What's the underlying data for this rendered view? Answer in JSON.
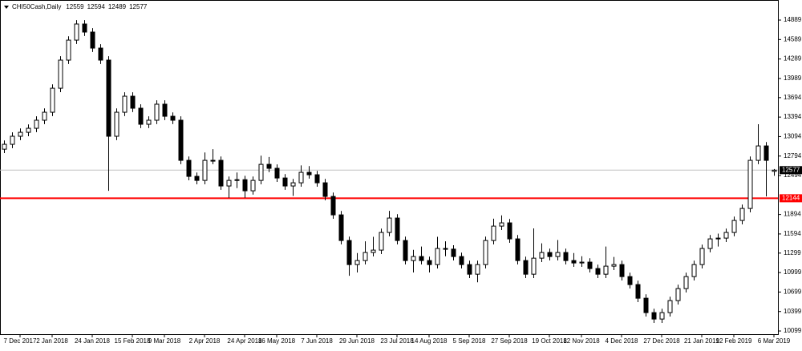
{
  "chart_data": {
    "type": "candlestick",
    "symbol": "CHI50Cash,Daily",
    "ylim": [
      10050,
      15198
    ],
    "yticks": [
      14889,
      14589,
      14289,
      13989,
      13694,
      13394,
      13094,
      12794,
      12494,
      11894,
      11594,
      11299,
      10999,
      10699,
      10399,
      10099
    ],
    "xlim": [
      -0.5,
      96.5
    ],
    "xticks": [
      {
        "value": 2,
        "label": "7 Dec 2017"
      },
      {
        "value": 6,
        "label": "2 Jan 2018"
      },
      {
        "value": 11,
        "label": "24 Jan 2018"
      },
      {
        "value": 16,
        "label": "15 Feb 2018"
      },
      {
        "value": 20,
        "label": "9 Mar 2018"
      },
      {
        "value": 25,
        "label": "2 Apr 2018"
      },
      {
        "value": 30,
        "label": "24 Apr 2018"
      },
      {
        "value": 34,
        "label": "16 May 2018"
      },
      {
        "value": 39,
        "label": "7 Jun 2018"
      },
      {
        "value": 44,
        "label": "29 Jun 2018"
      },
      {
        "value": 49,
        "label": "23 Jul 2018"
      },
      {
        "value": 53,
        "label": "14 Aug 2018"
      },
      {
        "value": 58,
        "label": "5 Sep 2018"
      },
      {
        "value": 63,
        "label": "27 Sep 2018"
      },
      {
        "value": 68,
        "label": "19 Oct 2018"
      },
      {
        "value": 72,
        "label": "12 Nov 2018"
      },
      {
        "value": 77,
        "label": "4 Dec 2018"
      },
      {
        "value": 82,
        "label": "27 Dec 2018"
      },
      {
        "value": 87,
        "label": "21 Jan 2019"
      },
      {
        "value": 91,
        "label": "12 Feb 2019"
      },
      {
        "value": 96,
        "label": "6 Mar 2019"
      }
    ],
    "color": "#000000",
    "bid": 12577,
    "bid_color": "#c0c0c0",
    "level": 12144,
    "level_color": "#ff0000",
    "ohlc": [
      [
        12900,
        13035,
        12840,
        12975
      ],
      [
        12975,
        13159,
        12915,
        13099
      ],
      [
        13099,
        13220,
        13039,
        13160
      ],
      [
        13160,
        13282,
        13100,
        13222
      ],
      [
        13222,
        13406,
        13162,
        13346
      ],
      [
        13346,
        13529,
        13286,
        13469
      ],
      [
        13469,
        13899,
        13409,
        13839
      ],
      [
        13839,
        14332,
        13779,
        14272
      ],
      [
        14272,
        14640,
        14212,
        14580
      ],
      [
        14580,
        14888,
        14520,
        14828
      ],
      [
        14828,
        14888,
        14644,
        14704
      ],
      [
        14704,
        14764,
        14397,
        14457
      ],
      [
        14457,
        14517,
        14212,
        14272
      ],
      [
        14272,
        14332,
        12259,
        13099
      ],
      [
        13099,
        13529,
        13039,
        13469
      ],
      [
        13469,
        13776,
        13409,
        13716
      ],
      [
        13716,
        13776,
        13471,
        13531
      ],
      [
        13531,
        13591,
        13224,
        13284
      ],
      [
        13284,
        13406,
        13224,
        13346
      ],
      [
        13346,
        13653,
        13286,
        13593
      ],
      [
        13593,
        13653,
        13347,
        13407
      ],
      [
        13407,
        13467,
        13286,
        13346
      ],
      [
        13346,
        13406,
        12668,
        12728
      ],
      [
        12728,
        12788,
        12421,
        12481
      ],
      [
        12481,
        12541,
        12359,
        12419
      ],
      [
        12419,
        12850,
        12359,
        12728
      ],
      [
        12728,
        12900,
        12668,
        12728
      ],
      [
        12728,
        12788,
        12273,
        12333
      ],
      [
        12333,
        12479,
        12150,
        12419
      ],
      [
        12419,
        12540,
        12300,
        12430
      ],
      [
        12430,
        12490,
        12150,
        12259
      ],
      [
        12259,
        12479,
        12199,
        12419
      ],
      [
        12419,
        12800,
        12359,
        12666
      ],
      [
        12666,
        12780,
        12545,
        12605
      ],
      [
        12605,
        12665,
        12396,
        12456
      ],
      [
        12456,
        12516,
        12273,
        12333
      ],
      [
        12333,
        12442,
        12180,
        12382
      ],
      [
        12382,
        12650,
        12322,
        12543
      ],
      [
        12543,
        12640,
        12446,
        12506
      ],
      [
        12506,
        12566,
        12322,
        12382
      ],
      [
        12382,
        12442,
        12112,
        12172
      ],
      [
        12172,
        12232,
        11828,
        11888
      ],
      [
        11888,
        11948,
        11433,
        11493
      ],
      [
        11493,
        11553,
        10950,
        11122
      ],
      [
        11122,
        11300,
        11000,
        11184
      ],
      [
        11184,
        11480,
        11124,
        11308
      ],
      [
        11308,
        11550,
        11248,
        11345
      ],
      [
        11345,
        11677,
        11285,
        11617
      ],
      [
        11617,
        11950,
        11557,
        11839
      ],
      [
        11839,
        11899,
        11433,
        11493
      ],
      [
        11493,
        11553,
        11124,
        11184
      ],
      [
        11184,
        11350,
        11000,
        11246
      ],
      [
        11246,
        11400,
        11124,
        11184
      ],
      [
        11184,
        11244,
        11000,
        11122
      ],
      [
        11122,
        11550,
        11062,
        11370
      ],
      [
        11370,
        11480,
        11250,
        11360
      ],
      [
        11360,
        11420,
        11186,
        11246
      ],
      [
        11246,
        11306,
        11062,
        11122
      ],
      [
        11122,
        11182,
        10914,
        10974
      ],
      [
        10974,
        11182,
        10850,
        11122
      ],
      [
        11122,
        11553,
        11062,
        11493
      ],
      [
        11493,
        11830,
        11433,
        11715
      ],
      [
        11715,
        11880,
        11655,
        11765
      ],
      [
        11765,
        11825,
        11458,
        11518
      ],
      [
        11518,
        11578,
        11124,
        11184
      ],
      [
        11184,
        11244,
        10914,
        10974
      ],
      [
        10974,
        11680,
        10914,
        11221
      ],
      [
        11221,
        11450,
        11161,
        11308
      ],
      [
        11308,
        11368,
        11186,
        11246
      ],
      [
        11246,
        11500,
        11186,
        11308
      ],
      [
        11308,
        11368,
        11124,
        11184
      ],
      [
        11184,
        11300,
        11087,
        11147
      ],
      [
        11147,
        11250,
        11087,
        11160
      ],
      [
        11160,
        11220,
        11001,
        11061
      ],
      [
        11061,
        11121,
        10914,
        10974
      ],
      [
        10974,
        11400,
        10914,
        11098
      ],
      [
        11098,
        11240,
        11038,
        11122
      ],
      [
        11122,
        11182,
        10877,
        10937
      ],
      [
        10937,
        10997,
        10754,
        10814
      ],
      [
        10814,
        10874,
        10544,
        10604
      ],
      [
        10604,
        10664,
        10322,
        10382
      ],
      [
        10382,
        10442,
        10223,
        10283
      ],
      [
        10283,
        10442,
        10223,
        10382
      ],
      [
        10382,
        10627,
        10322,
        10567
      ],
      [
        10567,
        10812,
        10507,
        10752
      ],
      [
        10752,
        10997,
        10692,
        10937
      ],
      [
        10937,
        11182,
        10877,
        11122
      ],
      [
        11122,
        11430,
        11062,
        11370
      ],
      [
        11370,
        11578,
        11310,
        11518
      ],
      [
        11518,
        11600,
        11400,
        11530
      ],
      [
        11530,
        11677,
        11470,
        11617
      ],
      [
        11617,
        11862,
        11557,
        11802
      ],
      [
        11802,
        12047,
        11742,
        11987
      ],
      [
        11987,
        12788,
        11927,
        12728
      ],
      [
        12728,
        13284,
        12668,
        12950
      ],
      [
        12950,
        13010,
        12172,
        12728
      ],
      [
        12559,
        12594,
        12489,
        12577
      ]
    ]
  }
}
